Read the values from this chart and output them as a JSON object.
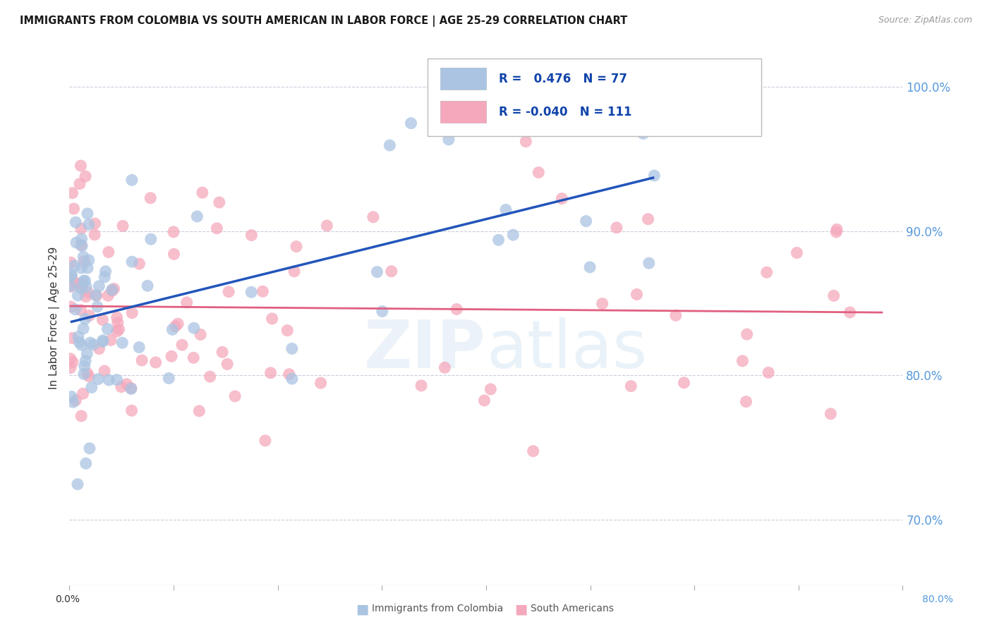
{
  "title": "IMMIGRANTS FROM COLOMBIA VS SOUTH AMERICAN IN LABOR FORCE | AGE 25-29 CORRELATION CHART",
  "source": "Source: ZipAtlas.com",
  "ylabel": "In Labor Force | Age 25-29",
  "legend_label1": "Immigrants from Colombia",
  "legend_label2": "South Americans",
  "R1": 0.476,
  "N1": 77,
  "R2": -0.04,
  "N2": 111,
  "color_blue": "#aac4e2",
  "color_pink": "#f5a8bc",
  "line_blue": "#2255bb",
  "line_pink": "#e06080",
  "xlim": [
    0.0,
    0.8
  ],
  "ylim": [
    0.655,
    1.025
  ],
  "yticks": [
    0.7,
    0.8,
    0.9,
    1.0
  ],
  "ytick_labels": [
    "70.0%",
    "80.0%",
    "90.0%",
    "100.0%"
  ],
  "xtick_labels_left": "0.0%",
  "xtick_labels_right": "80.0%"
}
